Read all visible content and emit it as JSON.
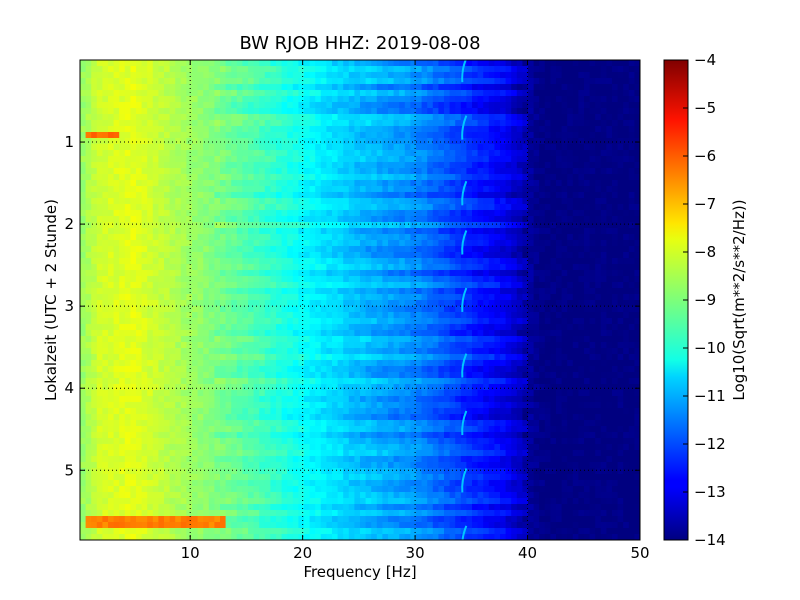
{
  "chart_data": {
    "type": "heatmap",
    "title": "BW RJOB HHZ: 2019-08-08",
    "xlabel": "Frequency [Hz]",
    "ylabel": "Lokalzeit (UTC + 2 Stunde)",
    "colorbar_label": "Log10(Sqrt(m**2/s**2/Hz))",
    "xlim": [
      0.2,
      50
    ],
    "ylim": [
      5.85,
      0.0
    ],
    "y_inverted": true,
    "grid": true,
    "x_ticks": [
      10,
      20,
      30,
      40,
      50
    ],
    "x_tick_labels": [
      "10",
      "20",
      "30",
      "40",
      "50"
    ],
    "y_ticks": [
      1,
      2,
      3,
      4,
      5
    ],
    "y_tick_labels": [
      "1",
      "2",
      "3",
      "4",
      "5"
    ],
    "colorbar_range": [
      -14,
      -4
    ],
    "colorbar_ticks": [
      -4,
      -5,
      -6,
      -7,
      -8,
      -9,
      -10,
      -11,
      -12,
      -13,
      -14
    ],
    "colorbar_tick_labels": [
      "−4",
      "−5",
      "−6",
      "−7",
      "−8",
      "−9",
      "−10",
      "−11",
      "−12",
      "−13",
      "−14"
    ],
    "colormap": "jet",
    "spectrum_profile": {
      "frequency_hz": [
        0.2,
        2,
        5,
        10,
        15,
        20,
        25,
        30,
        35,
        38,
        39.5,
        40.5,
        41.5,
        50
      ],
      "log10_psd": [
        -8.8,
        -8.2,
        -8.0,
        -8.7,
        -9.4,
        -10.2,
        -10.9,
        -11.4,
        -12.4,
        -12.9,
        -13.4,
        -13.8,
        -14.0,
        -14.0
      ]
    },
    "features": [
      {
        "type": "band",
        "time_h": 0.92,
        "freq_range_hz": [
          0.5,
          3.5
        ],
        "log10_psd": -6.3
      },
      {
        "type": "band",
        "time_h": 5.62,
        "freq_range_hz": [
          0.5,
          13
        ],
        "log10_psd": -6.5
      },
      {
        "type": "comb",
        "freq_hz": 34.2,
        "times_h": [
          0.1,
          0.8,
          1.6,
          2.2,
          2.9,
          3.7,
          4.4,
          5.1,
          5.8
        ],
        "log10_psd": -10.8
      }
    ]
  }
}
